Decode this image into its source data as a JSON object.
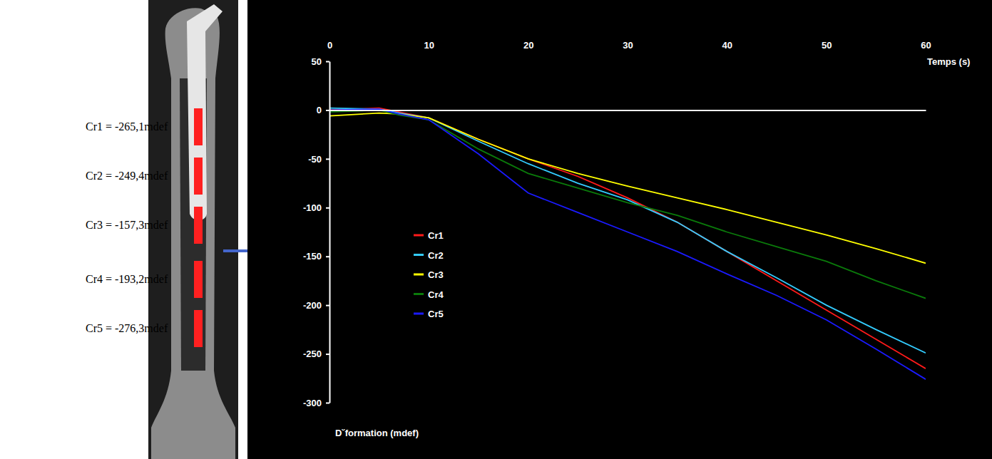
{
  "chart_data": {
    "type": "line",
    "x_label": "Temps (s)",
    "y_label": "D˘formation (mdef)",
    "annotations": [
      "Cr1 = -265,1mdef",
      "Cr2 = -249,4mdef",
      "Cr3 = -157,3mdef",
      "Cr4 = -193,2mdef",
      "Cr5 = -276,3mdef"
    ],
    "x": [
      0,
      5,
      7,
      10,
      15,
      20,
      25,
      30,
      35,
      40,
      45,
      50,
      55,
      60
    ],
    "series": [
      {
        "name": "Cr1",
        "color": "#ff1a1a",
        "values": [
          0,
          2,
          -2,
          -8,
          -30,
          -50,
          -68,
          -90,
          -115,
          -145,
          -175,
          -205,
          -235,
          -265
        ]
      },
      {
        "name": "Cr2",
        "color": "#33ccff",
        "values": [
          2,
          1,
          -3,
          -8,
          -32,
          -55,
          -75,
          -92,
          -115,
          -145,
          -172,
          -200,
          -225,
          -249
        ]
      },
      {
        "name": "Cr3",
        "color": "#ffff00",
        "values": [
          -6,
          -3,
          -4,
          -8,
          -30,
          -50,
          -65,
          -78,
          -90,
          -102,
          -115,
          -128,
          -142,
          -157
        ]
      },
      {
        "name": "Cr4",
        "color": "#0a7a0a",
        "values": [
          -2,
          0,
          -5,
          -10,
          -40,
          -65,
          -80,
          -95,
          -108,
          -125,
          -140,
          -155,
          -175,
          -193
        ]
      },
      {
        "name": "Cr5",
        "color": "#1a1aff",
        "values": [
          0,
          1,
          -4,
          -10,
          -45,
          -85,
          -105,
          -125,
          -145,
          -168,
          -190,
          -215,
          -245,
          -276
        ]
      }
    ],
    "xlim": [
      0,
      60
    ],
    "xticks": [
      0,
      10,
      20,
      30,
      40,
      50,
      60
    ],
    "ylim": [
      -300,
      50
    ],
    "yticks": [
      -300,
      -250,
      -200,
      -150,
      -100,
      -50,
      0,
      50
    ],
    "grid": false,
    "legend": "left"
  }
}
